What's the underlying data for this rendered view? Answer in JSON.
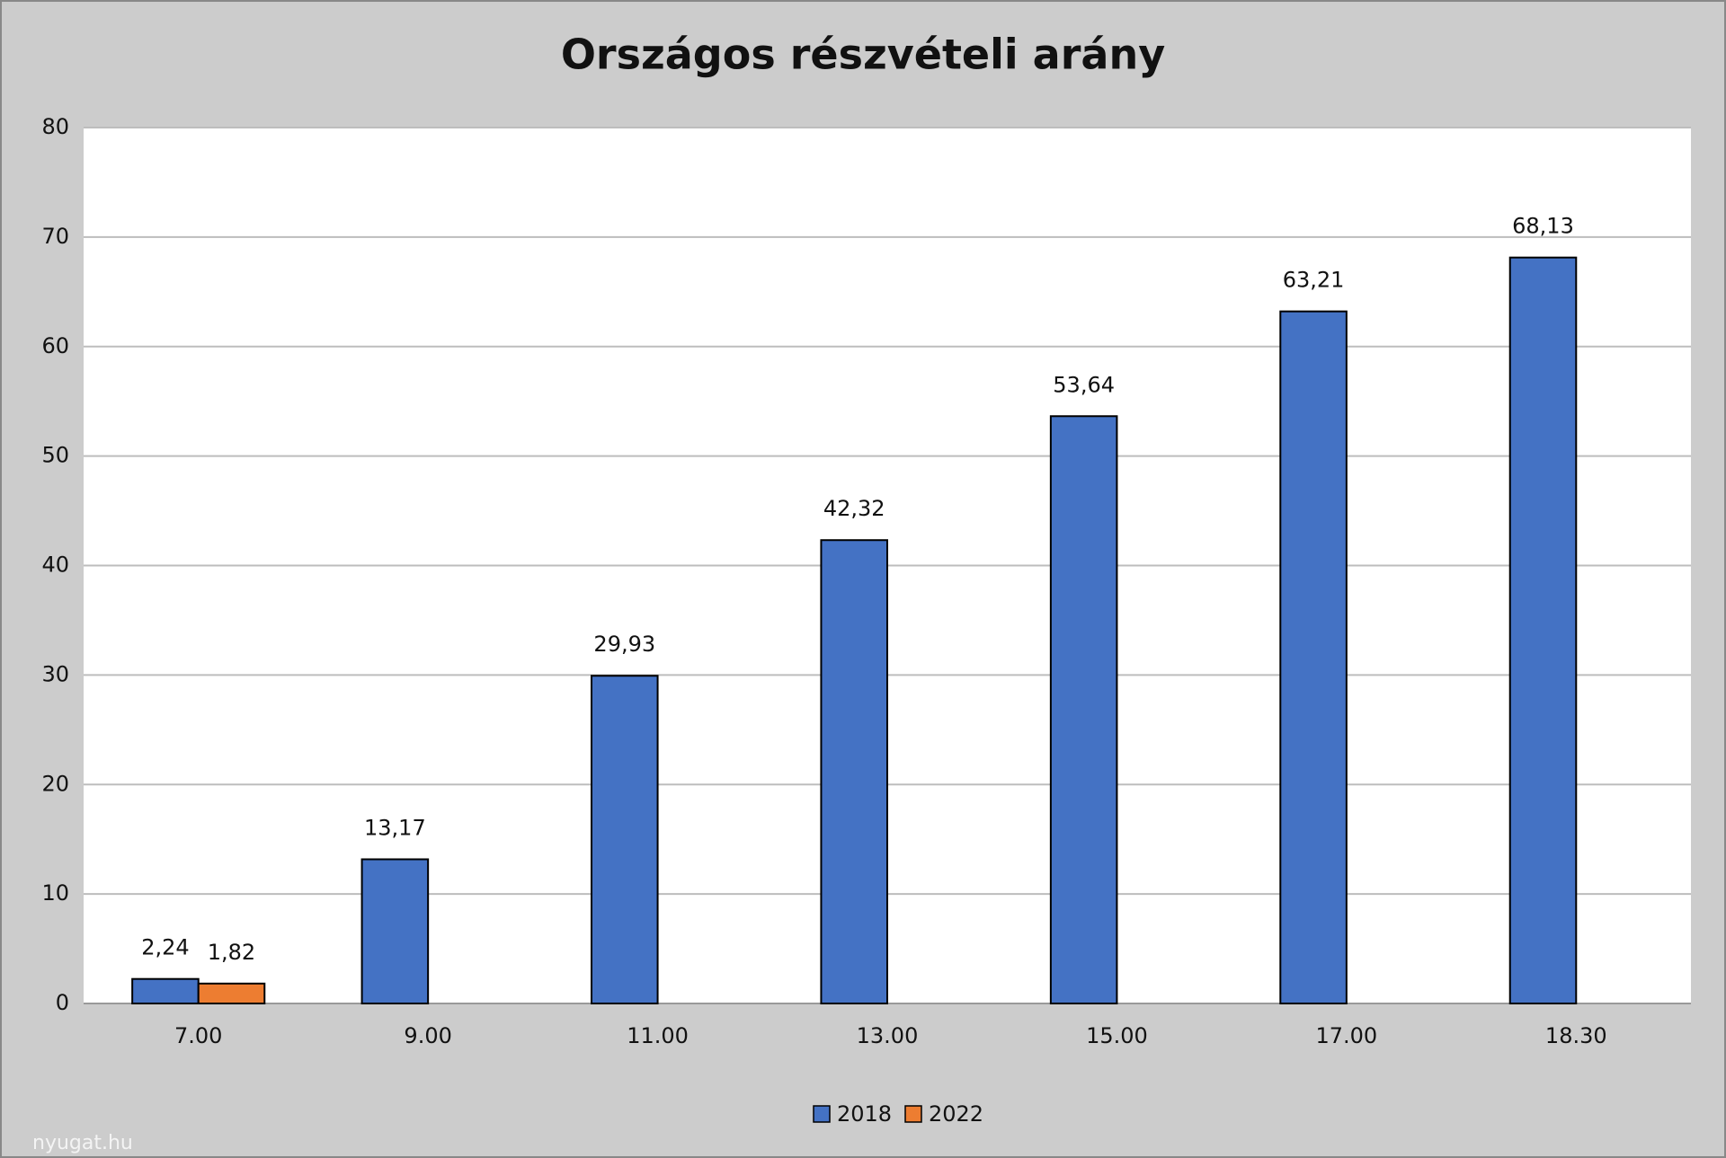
{
  "chart_data": {
    "type": "bar",
    "title": "Országos részvételi arány",
    "categories": [
      "7.00",
      "9.00",
      "11.00",
      "13.00",
      "15.00",
      "17.00",
      "18.30"
    ],
    "series": [
      {
        "name": "2018",
        "color": "#4472c4",
        "values": [
          2.24,
          13.17,
          29.93,
          42.32,
          53.64,
          63.21,
          68.13
        ],
        "value_labels": [
          "2,24",
          "13,17",
          "29,93",
          "42,32",
          "53,64",
          "63,21",
          "68,13"
        ]
      },
      {
        "name": "2022",
        "color": "#ed7d31",
        "values": [
          1.82,
          null,
          null,
          null,
          null,
          null,
          null
        ],
        "value_labels": [
          "1,82",
          null,
          null,
          null,
          null,
          null,
          null
        ]
      }
    ],
    "ylim": [
      0,
      80
    ],
    "yticks": [
      0,
      10,
      20,
      30,
      40,
      50,
      60,
      70,
      80
    ],
    "grid": true,
    "legend": "bottom",
    "watermark": "nyugat.hu"
  }
}
